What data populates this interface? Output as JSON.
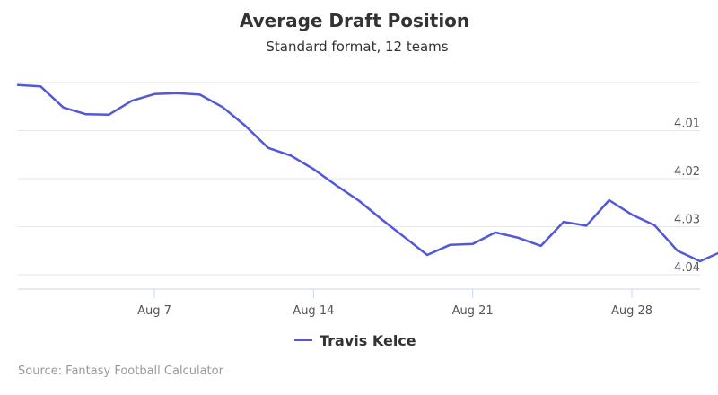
{
  "chart_data": {
    "type": "line",
    "title": "Average Draft Position",
    "subtitle": "Standard format, 12 teams",
    "xlabel": "",
    "ylabel": "",
    "y_axis_reversed": true,
    "y_axis_side": "right",
    "ylim": [
      4.0,
      4.043
    ],
    "yticks": [
      4.01,
      4.02,
      4.03,
      4.04
    ],
    "ytick_labels": [
      "4.01",
      "4.02",
      "4.03",
      "4.04"
    ],
    "xlim": [
      "2016-08-01",
      "2016-08-31"
    ],
    "xticks": [
      "2016-08-07",
      "2016-08-14",
      "2016-08-21",
      "2016-08-28"
    ],
    "xtick_labels": [
      "Aug 7",
      "Aug 14",
      "Aug 21",
      "Aug 28"
    ],
    "grid": "horizontal",
    "legend_position": "bottom-center",
    "series": [
      {
        "name": "Travis Kelce",
        "color": "#5258d6",
        "x": [
          "2016-08-01",
          "2016-08-02",
          "2016-08-03",
          "2016-08-04",
          "2016-08-05",
          "2016-08-06",
          "2016-08-07",
          "2016-08-08",
          "2016-08-09",
          "2016-08-10",
          "2016-08-11",
          "2016-08-12",
          "2016-08-13",
          "2016-08-14",
          "2016-08-15",
          "2016-08-16",
          "2016-08-17",
          "2016-08-18",
          "2016-08-19",
          "2016-08-20",
          "2016-08-21",
          "2016-08-22",
          "2016-08-23",
          "2016-08-24",
          "2016-08-25",
          "2016-08-26",
          "2016-08-27",
          "2016-08-28",
          "2016-08-29",
          "2016-08-30",
          "2016-08-31",
          "2016-09-01"
        ],
        "values": [
          4.0005,
          4.0008,
          4.0052,
          4.0066,
          4.0067,
          4.0038,
          4.0024,
          4.0022,
          4.0025,
          4.0051,
          4.009,
          4.0136,
          4.0152,
          4.018,
          4.0214,
          4.0246,
          4.0285,
          4.0322,
          4.0359,
          4.0338,
          4.0336,
          4.0312,
          4.0323,
          4.034,
          4.029,
          4.0298,
          4.0245,
          4.0275,
          4.0297,
          4.035,
          4.0372,
          4.0351
        ]
      }
    ]
  },
  "legend": {
    "label": "Travis Kelce"
  },
  "credit": "Source: Fantasy Football Calculator"
}
